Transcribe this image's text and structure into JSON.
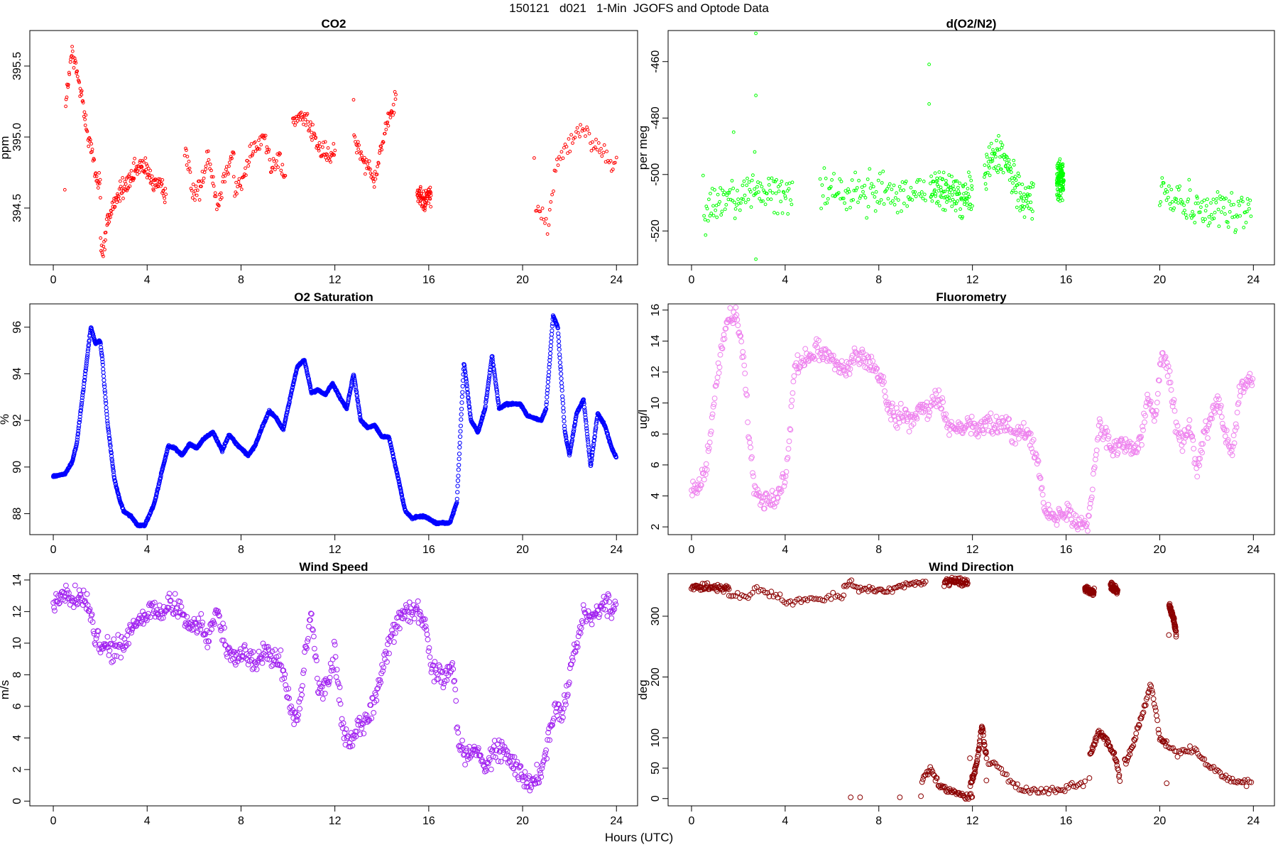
{
  "figure": {
    "title": "150121   d021   1-Min  JGOFS and Optode Data",
    "xlabel": "Hours (UTC)"
  },
  "chart_data": [
    {
      "type": "scatter",
      "title": "CO2",
      "ylabel": "ppm",
      "color": "#ff0000",
      "marker_size": "small",
      "xlim": [
        -1,
        24.9
      ],
      "ylim": [
        394.1,
        395.75
      ],
      "xticks": [
        0,
        4,
        8,
        12,
        16,
        20,
        24
      ],
      "yticks": [
        394.5,
        395.0,
        395.5
      ],
      "ytick_labels": [
        "394.5",
        "395.0",
        "395.5"
      ],
      "segments": [
        {
          "x": [
            0.5,
            0.8,
            1.2,
            1.5,
            1.8,
            2.0
          ],
          "y": [
            395.2,
            395.6,
            395.3,
            395.0,
            394.75,
            394.65
          ]
        },
        {
          "x": [
            2.0,
            2.1,
            2.3,
            2.6,
            3.0,
            3.4
          ],
          "y": [
            394.3,
            394.15,
            394.4,
            394.55,
            394.65,
            394.7
          ]
        },
        {
          "x": [
            3.4,
            3.8,
            4.2,
            4.5,
            4.8
          ],
          "y": [
            394.75,
            394.8,
            394.7,
            394.65,
            394.6
          ]
        },
        {
          "x": [
            5.6,
            5.9,
            6.3,
            6.6,
            7.0,
            7.4,
            7.7
          ],
          "y": [
            395.0,
            394.6,
            394.65,
            394.9,
            394.5,
            394.8,
            394.9
          ]
        },
        {
          "x": [
            7.7,
            8.1,
            8.4,
            8.7,
            9.0,
            9.3,
            9.6,
            9.9
          ],
          "y": [
            394.6,
            394.7,
            394.9,
            394.95,
            395.0,
            394.8,
            394.85,
            394.7
          ]
        },
        {
          "x": [
            10.2,
            10.6,
            11.0,
            11.4,
            11.8,
            12.0
          ],
          "y": [
            395.1,
            395.15,
            395.05,
            394.9,
            394.85,
            394.9
          ]
        },
        {
          "x": [
            12.8,
            13.1,
            13.4,
            13.7,
            14.0,
            14.3,
            14.6
          ],
          "y": [
            395.0,
            394.9,
            394.8,
            394.7,
            394.95,
            395.1,
            395.3
          ]
        },
        {
          "x": [
            15.5,
            15.8,
            16.1
          ],
          "y": [
            394.6,
            394.55,
            394.6
          ]
        },
        {
          "x": [
            20.5,
            20.8,
            21.1,
            21.4,
            21.8,
            22.2,
            22.6,
            23.0,
            23.4,
            23.8,
            24.0
          ],
          "y": [
            394.5,
            394.45,
            394.35,
            394.8,
            394.9,
            395.0,
            395.05,
            394.95,
            394.9,
            394.8,
            394.85
          ]
        }
      ],
      "spread": 0.05,
      "n_per_segment": 70
    },
    {
      "type": "scatter",
      "title": "d(O2/N2)",
      "ylabel": "per meg",
      "color": "#00ff00",
      "marker_size": "small",
      "xlim": [
        -1,
        24.9
      ],
      "ylim": [
        -532,
        -449
      ],
      "xticks": [
        0,
        4,
        8,
        12,
        16,
        20,
        24
      ],
      "yticks": [
        -520,
        -500,
        -480,
        -460
      ],
      "ytick_labels": [
        "-520",
        "-500",
        "-480",
        "-460"
      ],
      "segments": [
        {
          "x": [
            0.5,
            1.5,
            2.5,
            3.5,
            4.3
          ],
          "y": [
            -513,
            -508,
            -506,
            -506,
            -507
          ]
        },
        {
          "x": [
            5.5,
            6.5,
            7.5,
            8.5,
            9.5,
            10.0
          ],
          "y": [
            -505,
            -506,
            -506,
            -506,
            -507,
            -506
          ]
        },
        {
          "x": [
            10.2,
            10.8,
            11.4,
            12.0
          ],
          "y": [
            -504,
            -506,
            -508,
            -508
          ]
        },
        {
          "x": [
            12.5,
            13.0,
            13.4,
            13.8,
            14.2,
            14.6
          ],
          "y": [
            -499,
            -493,
            -496,
            -503,
            -508,
            -509
          ]
        },
        {
          "x": [
            15.6,
            15.9
          ],
          "y": [
            -502,
            -502
          ]
        },
        {
          "x": [
            20.0,
            20.8,
            21.5,
            22.2,
            23.0,
            23.9
          ],
          "y": [
            -506,
            -508,
            -512,
            -512,
            -513,
            -512
          ]
        }
      ],
      "spread": 5.0,
      "n_per_segment": 110,
      "outliers": [
        {
          "x": 2.75,
          "y": -450
        },
        {
          "x": 2.75,
          "y": -472
        },
        {
          "x": 10.15,
          "y": -461
        },
        {
          "x": 10.15,
          "y": -475
        },
        {
          "x": 2.7,
          "y": -492
        },
        {
          "x": 2.75,
          "y": -530
        },
        {
          "x": 1.8,
          "y": -485
        }
      ]
    },
    {
      "type": "scatter",
      "title": "O2 Saturation",
      "ylabel": "%",
      "color": "#0000ff",
      "marker_size": "line",
      "xlim": [
        -1,
        24.9
      ],
      "ylim": [
        87.1,
        97.0
      ],
      "xticks": [
        0,
        4,
        8,
        12,
        16,
        20,
        24
      ],
      "yticks": [
        88,
        90,
        92,
        94,
        96
      ],
      "ytick_labels": [
        "88",
        "90",
        "92",
        "94",
        "96"
      ],
      "x": [
        0.0,
        0.5,
        0.8,
        1.0,
        1.3,
        1.6,
        1.8,
        2.0,
        2.1,
        2.3,
        2.6,
        2.8,
        3.0,
        3.3,
        3.6,
        3.9,
        4.3,
        4.6,
        4.9,
        5.2,
        5.5,
        5.8,
        6.1,
        6.4,
        6.8,
        7.2,
        7.5,
        7.8,
        8.0,
        8.3,
        8.6,
        8.9,
        9.2,
        9.5,
        9.8,
        10.1,
        10.4,
        10.7,
        11.0,
        11.3,
        11.6,
        11.9,
        12.2,
        12.5,
        12.8,
        13.1,
        13.4,
        13.7,
        14.0,
        14.3,
        14.7,
        15.0,
        15.3,
        15.7,
        16.0,
        16.3,
        16.6,
        16.9,
        17.2,
        17.5,
        17.8,
        18.1,
        18.4,
        18.7,
        19.0,
        19.3,
        19.6,
        19.9,
        20.2,
        20.5,
        20.8,
        21.0,
        21.3,
        21.5,
        21.8,
        22.0,
        22.3,
        22.6,
        22.9,
        23.2,
        23.5,
        23.8,
        24.0
      ],
      "y": [
        89.6,
        89.7,
        90.2,
        91.0,
        93.5,
        96.0,
        95.3,
        95.4,
        94.5,
        92.0,
        89.5,
        88.7,
        88.1,
        87.9,
        87.5,
        87.5,
        88.4,
        89.7,
        90.9,
        90.8,
        90.5,
        91.0,
        90.8,
        91.2,
        91.5,
        90.7,
        91.4,
        91.0,
        90.8,
        90.5,
        90.9,
        91.7,
        92.4,
        92.1,
        91.6,
        93.0,
        94.3,
        94.6,
        93.2,
        93.3,
        93.1,
        93.6,
        93.0,
        92.5,
        94.0,
        92.0,
        91.7,
        91.8,
        91.3,
        91.3,
        89.5,
        88.1,
        87.8,
        87.9,
        87.8,
        87.6,
        87.6,
        87.6,
        88.5,
        94.5,
        92.0,
        91.5,
        92.5,
        94.8,
        92.5,
        92.7,
        92.7,
        92.7,
        92.2,
        92.1,
        92.0,
        92.5,
        96.5,
        96.0,
        91.5,
        90.5,
        92.3,
        92.9,
        90.0,
        92.3,
        91.8,
        90.8,
        90.4
      ]
    },
    {
      "type": "scatter",
      "title": "Fluorometry",
      "ylabel": "ug/l",
      "color": "#ee82ee",
      "marker_size": "large",
      "xlim": [
        -1,
        24.9
      ],
      "ylim": [
        1.5,
        16.4
      ],
      "xticks": [
        0,
        4,
        8,
        12,
        16,
        20,
        24
      ],
      "yticks": [
        2,
        4,
        6,
        8,
        10,
        12,
        14,
        16
      ],
      "ytick_labels": [
        "2",
        "4",
        "6",
        "8",
        "10",
        "12",
        "14",
        "16"
      ],
      "x": [
        0.0,
        0.4,
        0.7,
        1.0,
        1.3,
        1.6,
        1.9,
        2.2,
        2.5,
        2.7,
        2.9,
        3.1,
        3.4,
        3.7,
        4.0,
        4.2,
        4.4,
        4.7,
        5.0,
        5.4,
        5.8,
        6.2,
        6.6,
        7.0,
        7.4,
        7.8,
        8.1,
        8.4,
        8.7,
        9.0,
        9.4,
        9.8,
        10.2,
        10.6,
        11.0,
        11.4,
        11.8,
        12.2,
        12.6,
        13.0,
        13.4,
        13.8,
        14.2,
        14.6,
        14.9,
        15.1,
        15.4,
        15.7,
        16.0,
        16.3,
        16.6,
        16.9,
        17.1,
        17.4,
        17.7,
        18.0,
        18.4,
        18.8,
        19.2,
        19.5,
        19.8,
        20.1,
        20.4,
        20.7,
        21.0,
        21.3,
        21.6,
        21.9,
        22.2,
        22.5,
        22.8,
        23.1,
        23.4,
        23.7,
        24.0
      ],
      "y": [
        4.5,
        4.6,
        6.5,
        10.5,
        14.0,
        15.4,
        15.5,
        13.5,
        7.0,
        4.3,
        4.0,
        3.8,
        3.9,
        4.0,
        5.2,
        8.0,
        12.5,
        12.8,
        13.0,
        13.5,
        13.2,
        12.5,
        12.2,
        13.0,
        12.8,
        12.3,
        11.5,
        10.0,
        9.0,
        9.2,
        8.8,
        9.5,
        9.8,
        10.2,
        8.5,
        8.3,
        9.0,
        8.2,
        8.8,
        8.5,
        8.5,
        8.0,
        8.3,
        7.5,
        5.5,
        3.0,
        2.5,
        2.6,
        3.0,
        2.7,
        2.3,
        2.1,
        4.5,
        8.5,
        8.0,
        7.0,
        7.5,
        6.8,
        7.5,
        10.5,
        9.0,
        13.5,
        12.0,
        8.5,
        7.5,
        8.5,
        5.5,
        8.0,
        9.0,
        10.2,
        8.0,
        6.5,
        10.5,
        11.5,
        11.2
      ],
      "spread": 0.45
    },
    {
      "type": "scatter",
      "title": "Wind Speed",
      "ylabel": "m/s",
      "color": "#a020f0",
      "marker_size": "large",
      "xlim": [
        -1,
        24.9
      ],
      "ylim": [
        -0.3,
        14.4
      ],
      "xticks": [
        0,
        4,
        8,
        12,
        16,
        20,
        24
      ],
      "yticks": [
        0,
        2,
        4,
        6,
        8,
        10,
        12,
        14
      ],
      "ytick_labels": [
        "0",
        "2",
        "4",
        "6",
        "8",
        "10",
        "12",
        "14"
      ],
      "x": [
        0.0,
        0.5,
        1.0,
        1.5,
        1.8,
        2.2,
        2.6,
        3.0,
        3.4,
        3.8,
        4.2,
        4.6,
        5.0,
        5.4,
        5.8,
        6.2,
        6.6,
        7.0,
        7.4,
        7.8,
        8.2,
        8.6,
        9.0,
        9.4,
        9.8,
        10.1,
        10.4,
        10.7,
        11.0,
        11.3,
        11.7,
        12.0,
        12.3,
        12.6,
        12.9,
        13.2,
        13.5,
        13.8,
        14.1,
        14.4,
        14.7,
        15.0,
        15.3,
        15.6,
        15.9,
        16.1,
        16.4,
        16.7,
        17.0,
        17.3,
        17.6,
        18.0,
        18.4,
        18.8,
        19.2,
        19.6,
        20.0,
        20.4,
        20.8,
        21.1,
        21.4,
        21.7,
        22.0,
        22.3,
        22.6,
        22.9,
        23.2,
        23.5,
        23.8,
        24.0
      ],
      "y": [
        12.5,
        13.0,
        12.8,
        12.5,
        10.0,
        9.8,
        9.5,
        9.8,
        11.0,
        11.5,
        12.2,
        11.8,
        12.5,
        12.0,
        11.0,
        11.2,
        10.5,
        12.0,
        9.5,
        9.0,
        9.5,
        8.5,
        9.5,
        9.0,
        8.5,
        6.0,
        5.0,
        9.0,
        12.0,
        7.0,
        7.5,
        9.5,
        5.0,
        3.5,
        4.5,
        5.0,
        5.5,
        7.0,
        9.0,
        10.5,
        11.5,
        12.0,
        12.2,
        12.0,
        11.0,
        8.5,
        8.0,
        7.5,
        9.0,
        3.5,
        3.0,
        3.5,
        2.0,
        3.5,
        3.0,
        2.5,
        1.5,
        1.0,
        2.0,
        4.0,
        6.0,
        5.5,
        8.0,
        10.0,
        12.0,
        11.5,
        12.0,
        12.5,
        12.2,
        13.0
      ],
      "spread": 0.5
    },
    {
      "type": "scatter",
      "title": "Wind Direction",
      "ylabel": "deg",
      "color": "#8b0000",
      "marker_size": "large",
      "xlim": [
        -1,
        24.9
      ],
      "ylim": [
        -12,
        370
      ],
      "xticks": [
        0,
        4,
        8,
        12,
        16,
        20,
        24
      ],
      "yticks": [
        0,
        50,
        100,
        200,
        300
      ],
      "ytick_labels": [
        "0",
        "50",
        "100",
        "200",
        "300"
      ],
      "segments": [
        {
          "x": [
            0.0,
            0.5,
            1.0,
            1.6
          ],
          "y": [
            349,
            348,
            347,
            346
          ]
        },
        {
          "x": [
            1.6,
            2.0,
            2.4,
            2.7,
            3.0,
            3.3,
            3.8,
            4.2,
            4.6,
            5.0,
            5.4,
            5.8,
            6.2,
            6.5
          ],
          "y": [
            333,
            334,
            332,
            350,
            340,
            335,
            330,
            322,
            325,
            326,
            328,
            330,
            332,
            333
          ]
        },
        {
          "x": [
            6.5,
            6.8,
            7.2,
            7.6,
            8.0,
            8.4,
            8.8,
            9.2,
            9.6,
            10.0
          ],
          "y": [
            350,
            356,
            343,
            345,
            342,
            340,
            347,
            352,
            355,
            356
          ]
        },
        {
          "x": [
            10.8,
            11.3,
            11.8
          ],
          "y": [
            357,
            357,
            356
          ]
        },
        {
          "x": [
            16.8,
            17.2
          ],
          "y": [
            345,
            340
          ]
        },
        {
          "x": [
            17.9,
            18.2
          ],
          "y": [
            350,
            340
          ]
        },
        {
          "x": [
            20.4,
            20.6,
            20.7
          ],
          "y": [
            318,
            295,
            270
          ]
        },
        {
          "x": [
            9.8,
            10.2,
            10.6,
            11.0,
            11.4,
            11.8,
            12.0
          ],
          "y": [
            25,
            50,
            20,
            15,
            8,
            5,
            5
          ]
        },
        {
          "x": [
            11.9,
            12.2,
            12.4,
            12.6
          ],
          "y": [
            20,
            60,
            120,
            70
          ]
        },
        {
          "x": [
            12.6,
            13.0,
            13.4,
            13.8,
            14.2,
            14.6,
            15.0,
            15.4,
            15.8,
            16.2,
            16.5,
            16.8
          ],
          "y": [
            60,
            55,
            40,
            20,
            15,
            12,
            12,
            12,
            14,
            20,
            22,
            25
          ]
        },
        {
          "x": [
            17.0,
            17.4,
            17.8,
            18.1,
            18.3
          ],
          "y": [
            70,
            110,
            90,
            70,
            30
          ]
        },
        {
          "x": [
            18.5,
            18.8,
            19.1,
            19.4,
            19.6,
            19.8,
            20.0,
            20.3
          ],
          "y": [
            60,
            80,
            120,
            155,
            190,
            150,
            100,
            90
          ]
        },
        {
          "x": [
            20.3,
            20.7,
            21.1,
            21.5,
            21.9,
            22.3,
            22.7,
            23.1,
            23.5,
            23.9
          ],
          "y": [
            90,
            75,
            80,
            80,
            60,
            50,
            35,
            30,
            28,
            25
          ]
        }
      ],
      "spread": 4,
      "n_per_segment": 55,
      "outliers": [
        {
          "x": 6.8,
          "y": 2
        },
        {
          "x": 7.2,
          "y": 2
        },
        {
          "x": 8.9,
          "y": 2
        }
      ]
    }
  ]
}
